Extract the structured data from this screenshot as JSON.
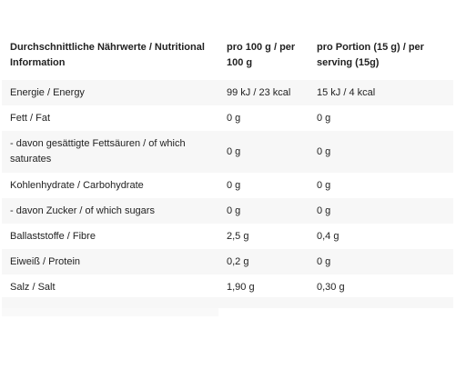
{
  "table": {
    "headers": {
      "name": "Durchschnittliche Nährwerte / Nutritional Information",
      "per100": "pro 100 g / per 100 g",
      "perPortion": "pro Portion (15 g) / per serving (15g)"
    },
    "rows": [
      {
        "name": "Energie / Energy",
        "per100": "99 kJ / 23 kcal",
        "perPortion": "15 kJ / 4 kcal"
      },
      {
        "name": "Fett / Fat",
        "per100": "0 g",
        "perPortion": "0 g"
      },
      {
        "name": "- davon gesättigte Fettsäuren / of which saturates",
        "per100": "0 g",
        "perPortion": "0 g"
      },
      {
        "name": "Kohlenhydrate / Carbohydrate",
        "per100": "0 g",
        "perPortion": "0 g"
      },
      {
        "name": "- davon Zucker / of which sugars",
        "per100": "0 g",
        "perPortion": "0 g"
      },
      {
        "name": "Ballaststoffe / Fibre",
        "per100": "2,5 g",
        "perPortion": "0,4 g"
      },
      {
        "name": "Eiweiß / Protein",
        "per100": "0,2 g",
        "perPortion": "0 g"
      },
      {
        "name": "Salz / Salt",
        "per100": "1,90 g",
        "perPortion": "0,30 g"
      }
    ]
  }
}
